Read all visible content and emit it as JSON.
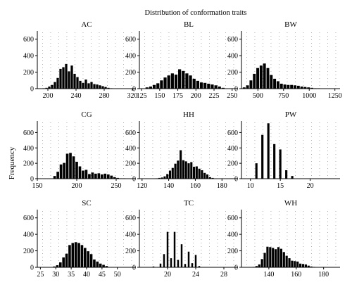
{
  "figure_title": "Distribution of conformation traits",
  "ylabel": "Frequency",
  "chart_data": [
    {
      "type": "bar",
      "title": "AC",
      "xlim": [
        185,
        325
      ],
      "ylim": [
        0,
        700
      ],
      "xticks": [
        200,
        240,
        280,
        320
      ],
      "yticks": [
        0,
        200,
        400,
        600
      ],
      "bin_width": 4,
      "x": [
        194,
        198,
        202,
        206,
        210,
        214,
        218,
        222,
        226,
        230,
        234,
        238,
        242,
        246,
        250,
        254,
        258,
        262,
        266,
        270,
        274,
        278,
        282,
        286,
        290
      ],
      "values": [
        5,
        10,
        25,
        45,
        80,
        130,
        240,
        260,
        300,
        210,
        280,
        180,
        140,
        95,
        70,
        110,
        65,
        80,
        55,
        50,
        40,
        30,
        20,
        10,
        5
      ]
    },
    {
      "type": "bar",
      "title": "BL",
      "xlim": [
        122,
        258
      ],
      "ylim": [
        0,
        700
      ],
      "xticks": [
        125,
        150,
        175,
        200,
        225,
        250
      ],
      "yticks": [
        0,
        200,
        400,
        600
      ],
      "bin_width": 5,
      "x": [
        132.5,
        137.5,
        142.5,
        147.5,
        152.5,
        157.5,
        162.5,
        167.5,
        172.5,
        177.5,
        182.5,
        187.5,
        192.5,
        197.5,
        202.5,
        207.5,
        212.5,
        217.5,
        222.5,
        227.5,
        232.5,
        237.5
      ],
      "values": [
        15,
        25,
        45,
        65,
        100,
        135,
        160,
        185,
        170,
        235,
        215,
        185,
        160,
        120,
        95,
        75,
        70,
        60,
        50,
        40,
        25,
        10
      ]
    },
    {
      "type": "bar",
      "title": "BW",
      "xlim": [
        340,
        1300
      ],
      "ylim": [
        0,
        700
      ],
      "xticks": [
        500,
        750,
        1000,
        1250
      ],
      "yticks": [
        0,
        200,
        400,
        600
      ],
      "bin_width": 33,
      "x": [
        366,
        399,
        432,
        465,
        498,
        531,
        564,
        597,
        630,
        663,
        696,
        729,
        762,
        795,
        828,
        861,
        894,
        927,
        960,
        993,
        1026,
        1059,
        1092
      ],
      "values": [
        15,
        40,
        100,
        180,
        250,
        280,
        305,
        250,
        165,
        120,
        90,
        60,
        50,
        45,
        45,
        40,
        35,
        25,
        20,
        15,
        10,
        5,
        5
      ]
    },
    {
      "type": "bar",
      "title": "CG",
      "xlim": [
        150,
        275
      ],
      "ylim": [
        0,
        750
      ],
      "xticks": [
        150,
        200,
        250
      ],
      "yticks": [
        0,
        200,
        400,
        600
      ],
      "bin_width": 4,
      "x": [
        172,
        176,
        180,
        184,
        188,
        192,
        196,
        200,
        204,
        208,
        212,
        216,
        220,
        224,
        228,
        232,
        236,
        240,
        244,
        248,
        252,
        256,
        260
      ],
      "values": [
        35,
        90,
        185,
        205,
        325,
        335,
        290,
        220,
        160,
        105,
        115,
        60,
        80,
        65,
        70,
        55,
        65,
        55,
        40,
        20,
        10,
        5,
        5
      ]
    },
    {
      "type": "bar",
      "title": "HH",
      "xlim": [
        118,
        192
      ],
      "ylim": [
        0,
        750
      ],
      "xticks": [
        120,
        140,
        160,
        180
      ],
      "yticks": [
        0,
        200,
        400,
        600
      ],
      "bin_width": 2,
      "x": [
        131,
        133,
        135,
        137,
        139,
        141,
        143,
        145,
        147,
        149,
        151,
        153,
        155,
        157,
        159,
        161,
        163,
        165,
        167,
        169,
        171,
        173
      ],
      "values": [
        5,
        10,
        15,
        30,
        60,
        105,
        140,
        195,
        235,
        370,
        240,
        225,
        200,
        215,
        155,
        160,
        130,
        110,
        75,
        55,
        20,
        10
      ]
    },
    {
      "type": "bar",
      "title": "PW",
      "xlim": [
        8.5,
        25
      ],
      "ylim": [
        0,
        750
      ],
      "xticks": [
        10,
        15,
        20
      ],
      "yticks": [
        0,
        200,
        400,
        600
      ],
      "bin_width": 0.45,
      "x": [
        11,
        12,
        13,
        14,
        15,
        16,
        17
      ],
      "values": [
        200,
        570,
        720,
        450,
        380,
        110,
        35
      ]
    },
    {
      "type": "bar",
      "title": "SC",
      "xlim": [
        24,
        56
      ],
      "ylim": [
        0,
        700
      ],
      "xticks": [
        25,
        30,
        35,
        40,
        45,
        50
      ],
      "yticks": [
        0,
        200,
        400,
        600
      ],
      "bin_width": 1,
      "x": [
        29.5,
        30.5,
        31.5,
        32.5,
        33.5,
        34.5,
        35.5,
        36.5,
        37.5,
        38.5,
        39.5,
        40.5,
        41.5,
        42.5,
        43.5,
        44.5,
        45.5,
        46.5
      ],
      "values": [
        10,
        25,
        60,
        120,
        165,
        270,
        295,
        305,
        295,
        270,
        235,
        195,
        160,
        95,
        70,
        45,
        30,
        15
      ]
    },
    {
      "type": "bar",
      "title": "TC",
      "xlim": [
        16,
        30
      ],
      "ylim": [
        0,
        700
      ],
      "xticks": [
        20,
        24,
        28
      ],
      "yticks": [
        0,
        200,
        400,
        600
      ],
      "bin_width": 0.3,
      "x": [
        18,
        19,
        19.5,
        20,
        20.5,
        21,
        21.5,
        22,
        22.5,
        23,
        23.5,
        24,
        24.5
      ],
      "values": [
        10,
        45,
        160,
        430,
        110,
        430,
        90,
        280,
        40,
        190,
        50,
        150,
        15
      ]
    },
    {
      "type": "bar",
      "title": "WH",
      "xlim": [
        120,
        192
      ],
      "ylim": [
        0,
        700
      ],
      "xticks": [
        140,
        160,
        180
      ],
      "yticks": [
        0,
        200,
        400,
        600
      ],
      "bin_width": 2,
      "x": [
        129,
        131,
        133,
        135,
        137,
        139,
        141,
        143,
        145,
        147,
        149,
        151,
        153,
        155,
        157,
        159,
        161,
        163,
        165,
        167,
        169,
        171,
        173
      ],
      "values": [
        5,
        15,
        35,
        100,
        175,
        250,
        245,
        235,
        220,
        245,
        225,
        185,
        140,
        110,
        80,
        75,
        70,
        45,
        40,
        35,
        20,
        10,
        5
      ]
    }
  ]
}
